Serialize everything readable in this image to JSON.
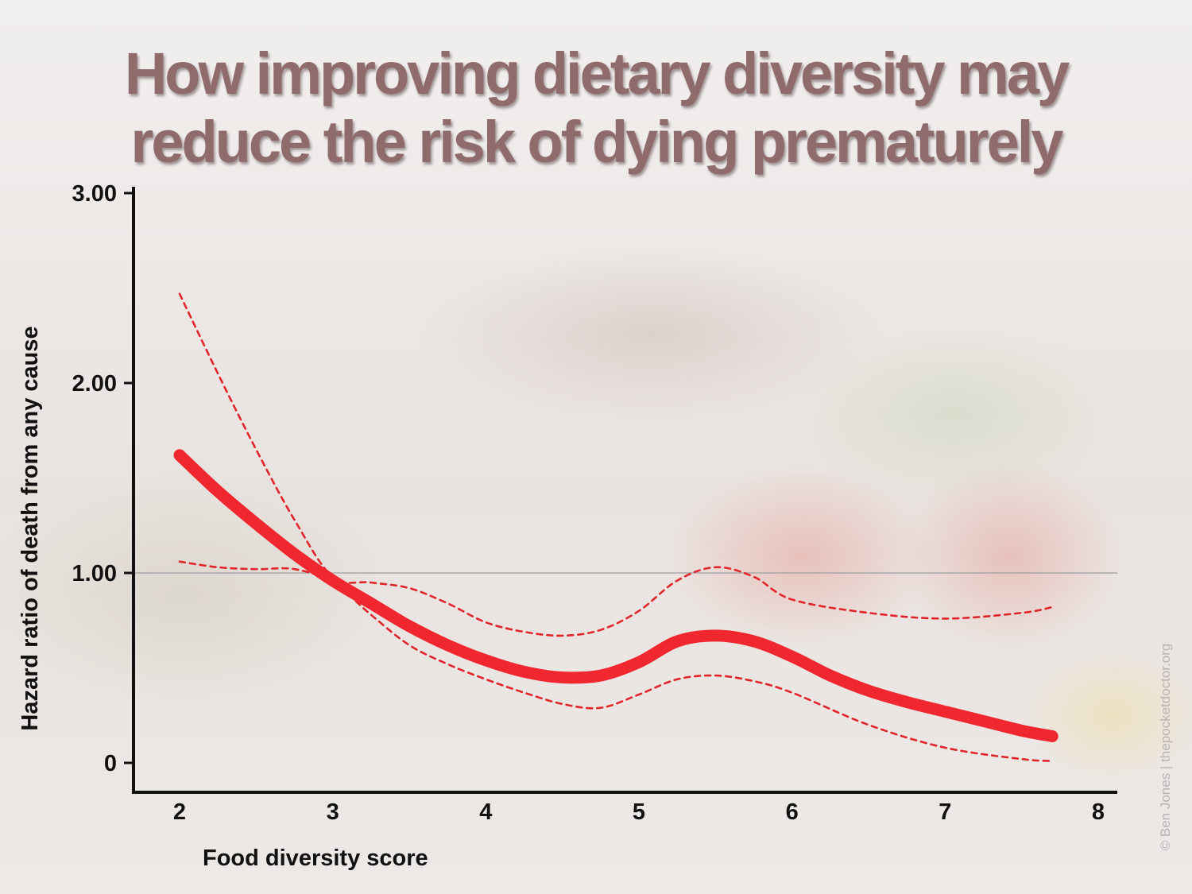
{
  "title": {
    "line1": "How improving dietary diversity may",
    "line2": "reduce the risk of dying prematurely"
  },
  "credit": "© Ben Jones | thepocketdoctor.org",
  "colors": {
    "curve": "#f0272f",
    "ci": "#e0262b",
    "reference": "#a8a8a8",
    "axis": "#111111",
    "title": "#8f6b6b"
  },
  "chart_data": {
    "type": "line",
    "xlabel": "Food diversity score",
    "ylabel": "Hazard ratio of death from any cause",
    "xlim": [
      2,
      8
    ],
    "ylim": [
      0,
      3
    ],
    "x_ticks": [
      2,
      3,
      4,
      5,
      6,
      7,
      8
    ],
    "x_tick_labels": [
      "2",
      "3",
      "4",
      "5",
      "6",
      "7",
      "8"
    ],
    "y_ticks": [
      0,
      1,
      2,
      3
    ],
    "y_tick_labels": [
      "0",
      "1.00",
      "2.00",
      "3.00"
    ],
    "reference_line": 1.0,
    "grid": false,
    "series": [
      {
        "role": "estimate",
        "style": "solid-thick",
        "x": [
          2.0,
          2.25,
          2.5,
          2.75,
          3.0,
          3.25,
          3.5,
          3.75,
          4.0,
          4.25,
          4.5,
          4.75,
          5.0,
          5.25,
          5.5,
          5.75,
          6.0,
          6.25,
          6.5,
          6.75,
          7.0,
          7.25,
          7.5,
          7.7
        ],
        "y": [
          1.62,
          1.43,
          1.26,
          1.1,
          0.96,
          0.84,
          0.72,
          0.62,
          0.54,
          0.48,
          0.45,
          0.46,
          0.53,
          0.64,
          0.67,
          0.64,
          0.56,
          0.46,
          0.38,
          0.32,
          0.27,
          0.22,
          0.17,
          0.14
        ]
      },
      {
        "role": "upper-ci",
        "style": "dashed",
        "x": [
          2.0,
          2.25,
          2.5,
          2.75,
          3.0,
          3.25,
          3.5,
          3.75,
          4.0,
          4.25,
          4.5,
          4.75,
          5.0,
          5.25,
          5.5,
          5.75,
          6.0,
          6.5,
          7.0,
          7.5,
          7.7
        ],
        "y": [
          2.47,
          2.05,
          1.65,
          1.28,
          0.98,
          0.95,
          0.92,
          0.84,
          0.74,
          0.69,
          0.67,
          0.7,
          0.8,
          0.96,
          1.03,
          0.98,
          0.86,
          0.79,
          0.76,
          0.79,
          0.82
        ]
      },
      {
        "role": "lower-ci",
        "style": "dashed",
        "x": [
          2.0,
          2.25,
          2.5,
          2.75,
          3.0,
          3.25,
          3.5,
          3.75,
          4.0,
          4.25,
          4.5,
          4.75,
          5.0,
          5.25,
          5.5,
          5.75,
          6.0,
          6.5,
          7.0,
          7.5,
          7.7
        ],
        "y": [
          1.06,
          1.03,
          1.02,
          1.02,
          0.95,
          0.78,
          0.62,
          0.52,
          0.44,
          0.37,
          0.31,
          0.29,
          0.36,
          0.44,
          0.46,
          0.43,
          0.37,
          0.2,
          0.08,
          0.02,
          0.01
        ]
      }
    ]
  }
}
